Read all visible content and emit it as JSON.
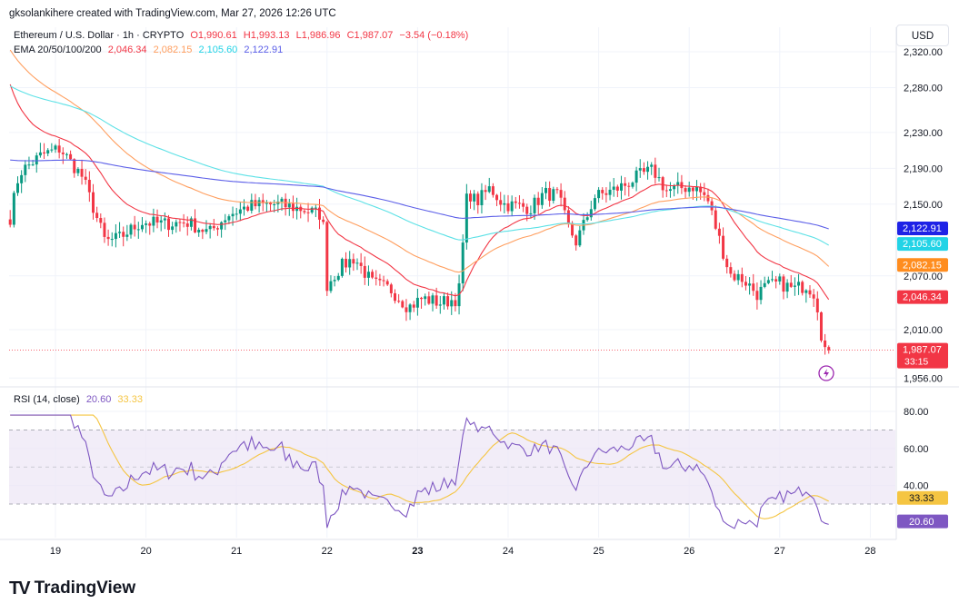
{
  "header": {
    "attribution": "gksolankihere created with TradingView.com, Mar 27, 2026 12:26 UTC"
  },
  "legend": {
    "symbol": "Ethereum / U.S. Dollar · 1h · CRYPTO",
    "ohlc": {
      "O": "O1,990.61",
      "H": "H1,993.13",
      "L": "L1,986.96",
      "C": "C1,987.07",
      "chg": "−3.54 (−0.18%)"
    },
    "ema_label": "EMA 20/50/100/200",
    "ema_values": [
      "2,046.34",
      "2,082.15",
      "2,105.60",
      "2,122.91"
    ],
    "rsi_label": "RSI (14, close)",
    "rsi_values": [
      "20.60",
      "33.33"
    ]
  },
  "currency_button": "USD",
  "branding": {
    "logo_text": "TradingView"
  },
  "colors": {
    "up": "#089981",
    "down": "#f23645",
    "ema20": "#f23645",
    "ema50": "#ff9e5e",
    "ema100": "#5ce1e6",
    "ema200": "#5b5ee8",
    "rsi": "#7e57c2",
    "rsi_ma": "#f5c542",
    "rsi_band": "#ede7f6"
  },
  "chart_data": {
    "type": "candlestick",
    "price_axis": {
      "ticks": [
        "2,320.00",
        "2,280.00",
        "2,230.00",
        "2,190.00",
        "2,150.00",
        "2,070.00",
        "2,010.00",
        "1,956.00"
      ],
      "ylim": [
        1956,
        2320
      ]
    },
    "x_axis": {
      "ticks": [
        "19",
        "20",
        "21",
        "22",
        "23",
        "24",
        "25",
        "26",
        "27",
        "28"
      ]
    },
    "price_labels": [
      {
        "text": "2,122.91",
        "value": 2122.91,
        "color": "#1e22e6"
      },
      {
        "text": "2,105.60",
        "value": 2105.6,
        "color": "#22d3e6"
      },
      {
        "text": "2,082.15",
        "value": 2082.15,
        "color": "#ff8d1f"
      },
      {
        "text": "2,046.34",
        "value": 2046.34,
        "color": "#f23645"
      },
      {
        "text": "1,987.07",
        "value": 1987.07,
        "color": "#f23645",
        "sub": "33:15"
      }
    ],
    "day_start": 18.5,
    "close_anchors": [
      [
        18.5,
        2135
      ],
      [
        18.6,
        2185
      ],
      [
        18.85,
        2205
      ],
      [
        19.05,
        2212
      ],
      [
        19.3,
        2180
      ],
      [
        19.55,
        2108
      ],
      [
        19.7,
        2112
      ],
      [
        19.95,
        2130
      ],
      [
        20.2,
        2128
      ],
      [
        20.45,
        2130
      ],
      [
        20.7,
        2118
      ],
      [
        20.9,
        2138
      ],
      [
        21.15,
        2148
      ],
      [
        21.45,
        2150
      ],
      [
        21.7,
        2145
      ],
      [
        21.95,
        2138
      ],
      [
        22.0,
        2060
      ],
      [
        22.15,
        2080
      ],
      [
        22.3,
        2090
      ],
      [
        22.5,
        2062
      ],
      [
        22.7,
        2055
      ],
      [
        22.9,
        2035
      ],
      [
        23.05,
        2045
      ],
      [
        23.25,
        2040
      ],
      [
        23.45,
        2045
      ],
      [
        23.55,
        2165
      ],
      [
        23.65,
        2152
      ],
      [
        23.8,
        2168
      ],
      [
        23.95,
        2150
      ],
      [
        24.1,
        2148
      ],
      [
        24.25,
        2146
      ],
      [
        24.4,
        2162
      ],
      [
        24.55,
        2160
      ],
      [
        24.65,
        2128
      ],
      [
        24.75,
        2108
      ],
      [
        24.85,
        2130
      ],
      [
        24.95,
        2158
      ],
      [
        25.15,
        2165
      ],
      [
        25.3,
        2172
      ],
      [
        25.45,
        2182
      ],
      [
        25.6,
        2188
      ],
      [
        25.75,
        2165
      ],
      [
        25.9,
        2168
      ],
      [
        26.05,
        2170
      ],
      [
        26.2,
        2156
      ],
      [
        26.35,
        2105
      ],
      [
        26.45,
        2072
      ],
      [
        26.6,
        2066
      ],
      [
        26.75,
        2050
      ],
      [
        26.85,
        2058
      ],
      [
        27.0,
        2062
      ],
      [
        27.15,
        2055
      ],
      [
        27.3,
        2060
      ],
      [
        27.4,
        2048
      ],
      [
        27.48,
        1990
      ],
      [
        27.55,
        1987.07
      ]
    ],
    "rsi_axis": {
      "ticks": [
        "80.00",
        "60.00",
        "40.00"
      ],
      "ylim": [
        0,
        80
      ],
      "band": [
        30,
        70
      ],
      "mid": 50
    },
    "rsi_price_labels": [
      {
        "text": "33.33",
        "value": 33.33,
        "color": "#f5c542"
      },
      {
        "text": "20.60",
        "value": 20.6,
        "color": "#7e57c2"
      }
    ]
  }
}
